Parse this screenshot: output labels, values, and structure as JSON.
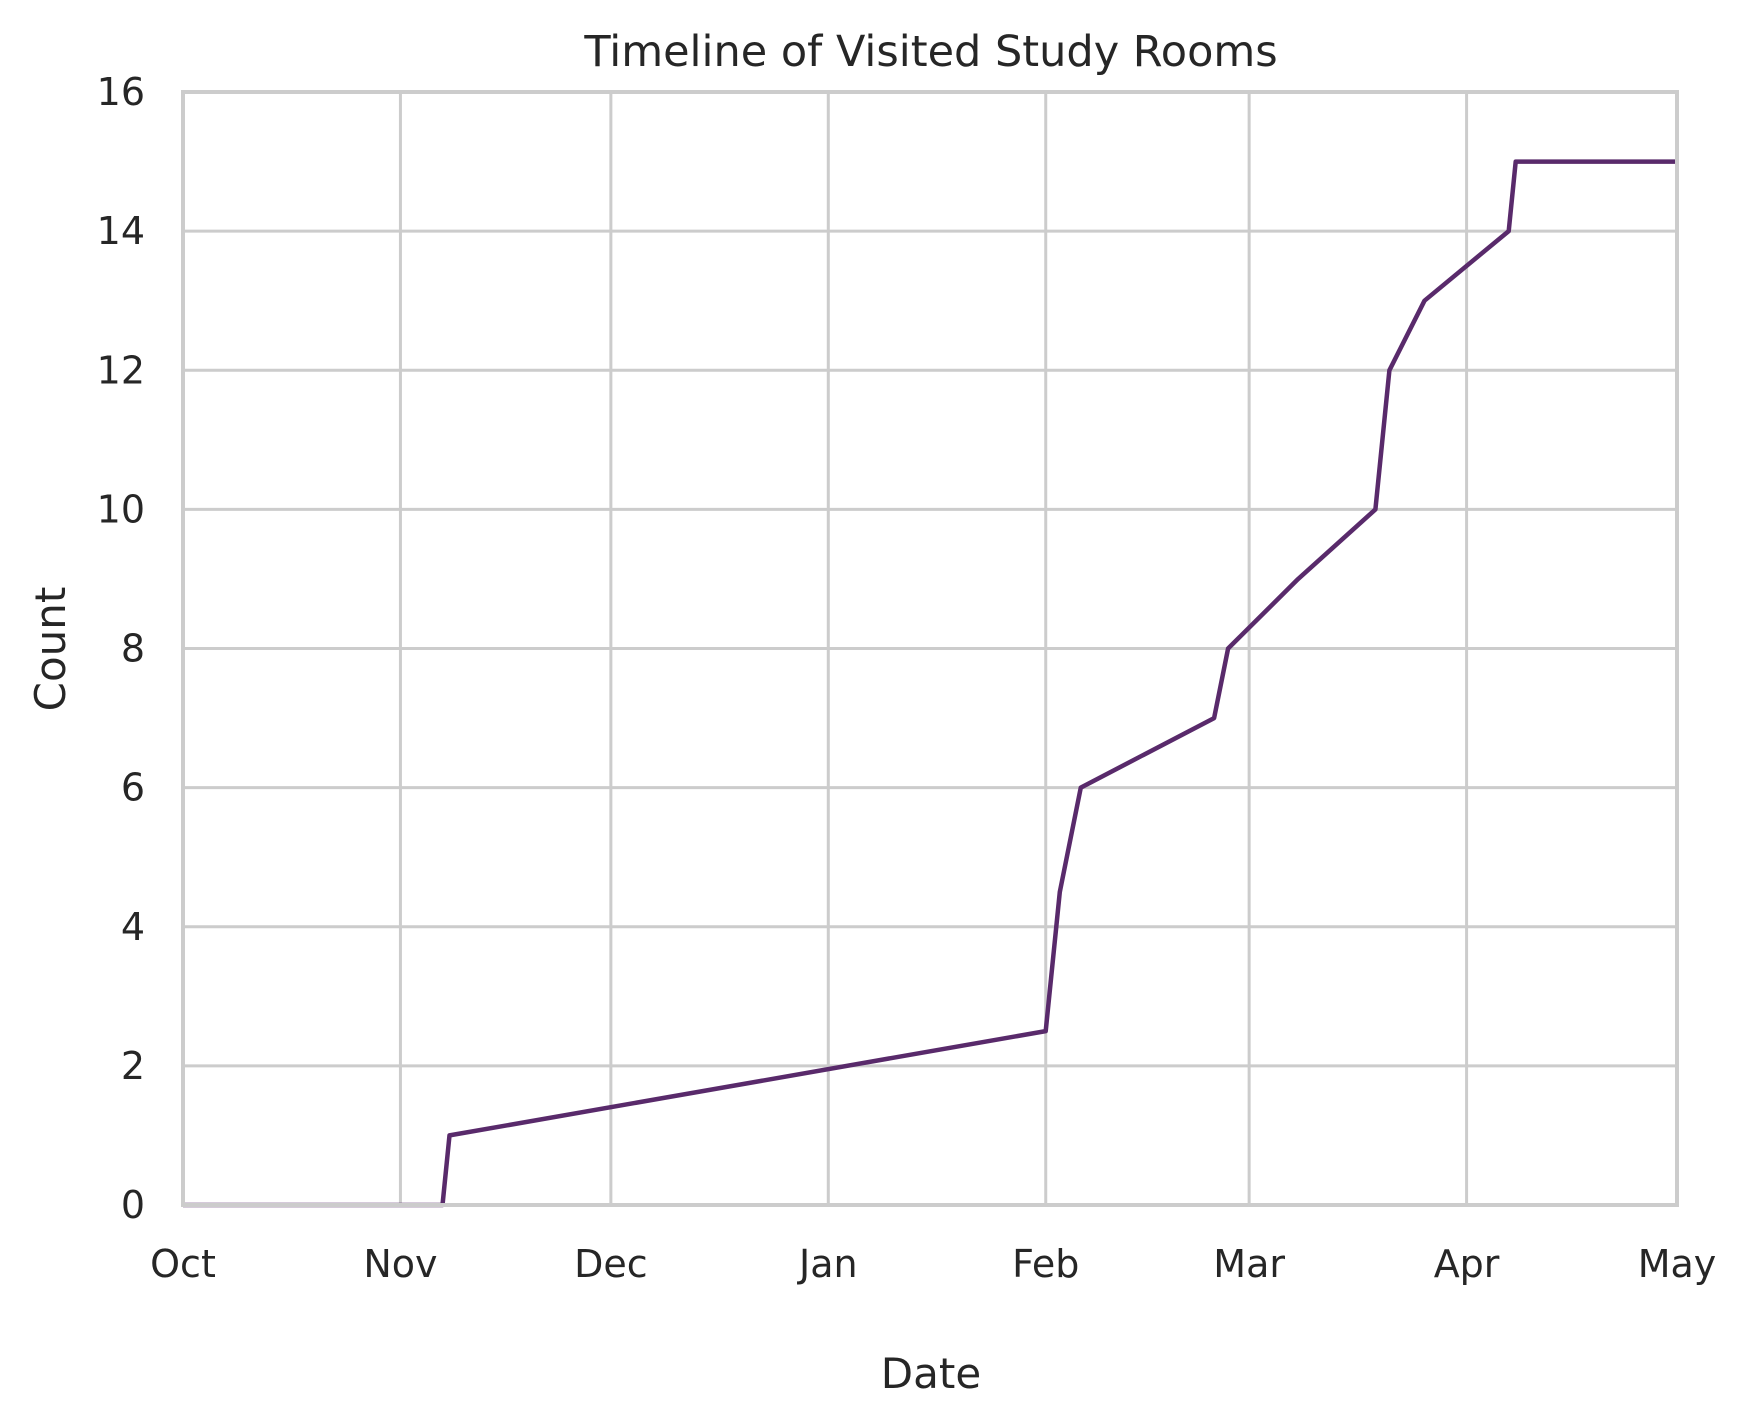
{
  "chart_data": {
    "type": "line",
    "title": "Timeline of Visited Study Rooms",
    "xlabel": "Date",
    "ylabel": "Count",
    "x_axis_type": "date",
    "xlim": [
      "2023-10-01",
      "2024-05-01"
    ],
    "ylim": [
      0,
      16
    ],
    "x_ticks": [
      {
        "date": "2023-10-01",
        "label": "Oct"
      },
      {
        "date": "2023-11-01",
        "label": "Nov"
      },
      {
        "date": "2023-12-01",
        "label": "Dec"
      },
      {
        "date": "2024-01-01",
        "label": "Jan"
      },
      {
        "date": "2024-02-01",
        "label": "Feb"
      },
      {
        "date": "2024-03-01",
        "label": "Mar"
      },
      {
        "date": "2024-04-01",
        "label": "Apr"
      },
      {
        "date": "2024-05-01",
        "label": "May"
      }
    ],
    "y_ticks": [
      0,
      2,
      4,
      6,
      8,
      10,
      12,
      14,
      16
    ],
    "grid": true,
    "series": [
      {
        "color": "#592a6b",
        "points": [
          {
            "x": "2023-10-01",
            "y": 0
          },
          {
            "x": "2023-11-07",
            "y": 0
          },
          {
            "x": "2023-11-08",
            "y": 1
          },
          {
            "x": "2024-02-01",
            "y": 2.5
          },
          {
            "x": "2024-02-03",
            "y": 4.5
          },
          {
            "x": "2024-02-06",
            "y": 6
          },
          {
            "x": "2024-02-25",
            "y": 7
          },
          {
            "x": "2024-02-27",
            "y": 8
          },
          {
            "x": "2024-03-08",
            "y": 9
          },
          {
            "x": "2024-03-19",
            "y": 10
          },
          {
            "x": "2024-03-21",
            "y": 12
          },
          {
            "x": "2024-03-26",
            "y": 13
          },
          {
            "x": "2024-04-07",
            "y": 14
          },
          {
            "x": "2024-04-08",
            "y": 15
          },
          {
            "x": "2024-05-01",
            "y": 15
          }
        ]
      }
    ]
  }
}
